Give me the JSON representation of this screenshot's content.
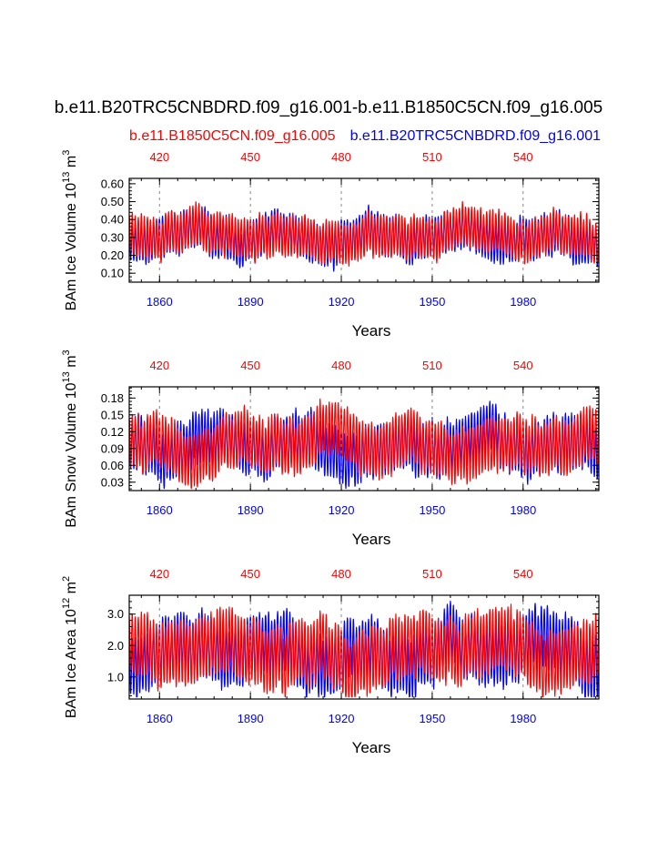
{
  "title": "b.e11.B20TRC5CNBDRD.f09_g16.001-b.e11.B1850C5CN.f09_g16.005",
  "legend": {
    "red_label": "b.e11.B1850C5CN.f09_g16.005",
    "blue_label": "b.e11.B20TRC5CNBDRD.f09_g16.001"
  },
  "colors": {
    "red": "#ff0000",
    "blue": "#0000ff",
    "axis": "#000000",
    "grid": "#888888"
  },
  "chart_data": [
    {
      "type": "line",
      "ylabel_main": "BAm Ice Volume 10",
      "ylabel_exp": "13",
      "ylabel_unit": " m",
      "ylabel_unit_exp": "3",
      "xlabel": "Years",
      "ylim": [
        0.05,
        0.63
      ],
      "yticks": [
        "0.10",
        "0.20",
        "0.30",
        "0.40",
        "0.50",
        "0.60"
      ],
      "ytick_values": [
        0.1,
        0.2,
        0.3,
        0.4,
        0.5,
        0.6
      ],
      "x_bottom_range": [
        1850,
        2005
      ],
      "x_bottom_ticks": [
        "1860",
        "1890",
        "1920",
        "1950",
        "1980"
      ],
      "x_bottom_tick_values": [
        1860,
        1890,
        1920,
        1950,
        1980
      ],
      "x_top_range": [
        410,
        565
      ],
      "x_top_ticks": [
        "420",
        "450",
        "480",
        "510",
        "540"
      ],
      "x_top_tick_values": [
        420,
        450,
        480,
        510,
        540
      ],
      "series": [
        {
          "name": "b.e11.B20TRC5CNBDRD.f09_g16.001",
          "color": "blue",
          "mean": 0.3,
          "amp": 0.12,
          "seed": 11
        },
        {
          "name": "b.e11.B1850C5CN.f09_g16.005",
          "color": "red",
          "mean": 0.31,
          "amp": 0.12,
          "seed": 29
        }
      ]
    },
    {
      "type": "line",
      "ylabel_main": "BAm Snow Volume 10",
      "ylabel_exp": "13",
      "ylabel_unit": " m",
      "ylabel_unit_exp": "3",
      "xlabel": "Years",
      "ylim": [
        0.015,
        0.2
      ],
      "yticks": [
        "0.03",
        "0.06",
        "0.09",
        "0.12",
        "0.15",
        "0.18"
      ],
      "ytick_values": [
        0.03,
        0.06,
        0.09,
        0.12,
        0.15,
        0.18
      ],
      "x_bottom_range": [
        1850,
        2005
      ],
      "x_bottom_ticks": [
        "1860",
        "1890",
        "1920",
        "1950",
        "1980"
      ],
      "x_bottom_tick_values": [
        1860,
        1890,
        1920,
        1950,
        1980
      ],
      "x_top_range": [
        410,
        565
      ],
      "x_top_ticks": [
        "420",
        "450",
        "480",
        "510",
        "540"
      ],
      "x_top_tick_values": [
        420,
        450,
        480,
        510,
        540
      ],
      "series": [
        {
          "name": "b.e11.B20TRC5CNBDRD.f09_g16.001",
          "color": "blue",
          "mean": 0.095,
          "amp": 0.05,
          "seed": 47
        },
        {
          "name": "b.e11.B1850C5CN.f09_g16.005",
          "color": "red",
          "mean": 0.098,
          "amp": 0.05,
          "seed": 83
        }
      ]
    },
    {
      "type": "line",
      "ylabel_main": "BAm Ice Area 10",
      "ylabel_exp": "12",
      "ylabel_unit": " m",
      "ylabel_unit_exp": "2",
      "xlabel": "Years",
      "ylim": [
        0.3,
        3.6
      ],
      "yticks": [
        "1.0",
        "2.0",
        "3.0"
      ],
      "ytick_values": [
        1.0,
        2.0,
        3.0
      ],
      "x_bottom_range": [
        1850,
        2005
      ],
      "x_bottom_ticks": [
        "1860",
        "1890",
        "1920",
        "1950",
        "1980"
      ],
      "x_bottom_tick_values": [
        1860,
        1890,
        1920,
        1950,
        1980
      ],
      "x_top_range": [
        410,
        565
      ],
      "x_top_ticks": [
        "420",
        "450",
        "480",
        "510",
        "540"
      ],
      "x_top_tick_values": [
        420,
        450,
        480,
        510,
        540
      ],
      "series": [
        {
          "name": "b.e11.B20TRC5CNBDRD.f09_g16.001",
          "color": "blue",
          "mean": 1.75,
          "amp": 1.05,
          "seed": 131
        },
        {
          "name": "b.e11.B1850C5CN.f09_g16.005",
          "color": "red",
          "mean": 1.78,
          "amp": 1.05,
          "seed": 197
        }
      ]
    }
  ]
}
